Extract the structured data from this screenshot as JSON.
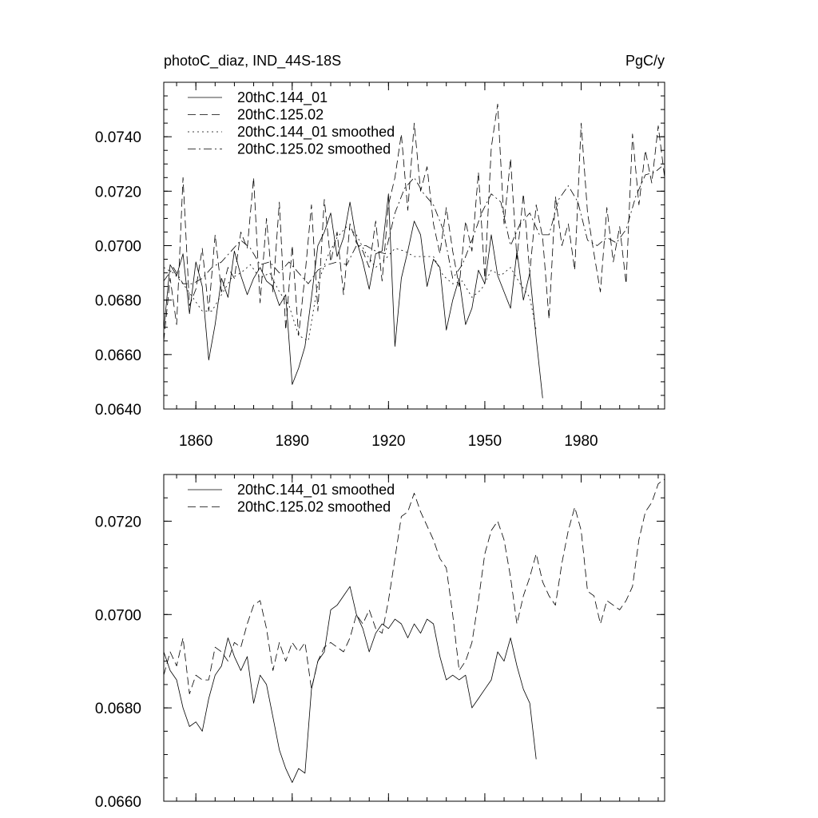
{
  "chart_data": [
    {
      "type": "line",
      "title": "photoC_diaz, IND_44S-18S",
      "title_right": "PgC/y",
      "xlabel": "",
      "ylabel": "",
      "xlim": [
        1850,
        2006
      ],
      "ylim": [
        0.064,
        0.076
      ],
      "xticks": [
        1860,
        1890,
        1920,
        1950,
        1980
      ],
      "xtick_labels": [
        "1860",
        "1890",
        "1920",
        "1950",
        "1980"
      ],
      "yticks": [
        0.064,
        0.066,
        0.068,
        0.07,
        0.072,
        0.074
      ],
      "ytick_labels": [
        "0.0640",
        "0.0660",
        "0.0680",
        "0.0700",
        "0.0720",
        "0.0740"
      ],
      "grid": false,
      "legend_position": "top-left",
      "series": [
        {
          "name": "20thC.144_01",
          "dash": "solid",
          "x": [
            1850,
            1852,
            1854,
            1856,
            1858,
            1860,
            1862,
            1864,
            1866,
            1868,
            1870,
            1872,
            1874,
            1876,
            1878,
            1880,
            1882,
            1884,
            1886,
            1888,
            1890,
            1892,
            1894,
            1896,
            1898,
            1900,
            1902,
            1904,
            1906,
            1908,
            1910,
            1912,
            1914,
            1916,
            1918,
            1920,
            1922,
            1924,
            1926,
            1928,
            1930,
            1932,
            1934,
            1936,
            1938,
            1940,
            1942,
            1944,
            1946,
            1948,
            1950,
            1952,
            1954,
            1956,
            1958,
            1960,
            1962,
            1964,
            1966,
            1968
          ],
          "y": [
            0.0669,
            0.0693,
            0.0689,
            0.0697,
            0.0675,
            0.0694,
            0.0685,
            0.0658,
            0.0671,
            0.0688,
            0.0681,
            0.0698,
            0.0689,
            0.0682,
            0.0688,
            0.0692,
            0.0687,
            0.0685,
            0.0678,
            0.0682,
            0.0649,
            0.0655,
            0.0663,
            0.0681,
            0.07,
            0.0705,
            0.0712,
            0.0696,
            0.0703,
            0.0716,
            0.0702,
            0.0694,
            0.0684,
            0.0697,
            0.0698,
            0.0719,
            0.0663,
            0.0688,
            0.0698,
            0.0709,
            0.0704,
            0.0685,
            0.0695,
            0.0692,
            0.0669,
            0.068,
            0.0688,
            0.0671,
            0.0677,
            0.0691,
            0.0686,
            0.0704,
            0.0689,
            0.0683,
            0.0677,
            0.0698,
            0.068,
            0.069,
            0.0666,
            0.0644
          ]
        },
        {
          "name": "20thC.125.02",
          "dash": "dashed",
          "x": [
            1850,
            1852,
            1854,
            1856,
            1858,
            1860,
            1862,
            1864,
            1866,
            1868,
            1870,
            1872,
            1874,
            1876,
            1878,
            1880,
            1882,
            1884,
            1886,
            1888,
            1890,
            1892,
            1894,
            1896,
            1898,
            1900,
            1902,
            1904,
            1906,
            1908,
            1910,
            1912,
            1914,
            1916,
            1918,
            1920,
            1922,
            1924,
            1926,
            1928,
            1930,
            1932,
            1934,
            1936,
            1938,
            1940,
            1942,
            1944,
            1946,
            1948,
            1950,
            1952,
            1954,
            1956,
            1958,
            1960,
            1962,
            1964,
            1966,
            1968,
            1970,
            1972,
            1974,
            1976,
            1978,
            1980,
            1982,
            1984,
            1986,
            1988,
            1990,
            1992,
            1994,
            1996,
            1998,
            2000,
            2002,
            2004,
            2006
          ],
          "y": [
            0.0665,
            0.0688,
            0.0671,
            0.0725,
            0.0678,
            0.0684,
            0.0699,
            0.0676,
            0.0704,
            0.0683,
            0.0692,
            0.0688,
            0.0705,
            0.0699,
            0.0725,
            0.0679,
            0.071,
            0.0683,
            0.0716,
            0.0669,
            0.07,
            0.0667,
            0.0689,
            0.0715,
            0.0676,
            0.0717,
            0.0694,
            0.0705,
            0.0682,
            0.0708,
            0.0701,
            0.0698,
            0.0692,
            0.0709,
            0.0687,
            0.0715,
            0.0725,
            0.0741,
            0.0713,
            0.0745,
            0.072,
            0.0729,
            0.0708,
            0.0697,
            0.0714,
            0.0698,
            0.0685,
            0.0709,
            0.0698,
            0.0727,
            0.0688,
            0.0736,
            0.0752,
            0.0708,
            0.0732,
            0.0695,
            0.0719,
            0.069,
            0.0715,
            0.0703,
            0.0673,
            0.0718,
            0.07,
            0.0708,
            0.0691,
            0.0745,
            0.0712,
            0.0697,
            0.0683,
            0.0714,
            0.0694,
            0.0707,
            0.0686,
            0.0741,
            0.0715,
            0.0735,
            0.0723,
            0.0744,
            0.0725
          ]
        },
        {
          "name": "20thC.144_01 smoothed",
          "dash": "dotted",
          "x": [
            1850,
            1853,
            1856,
            1859,
            1862,
            1865,
            1868,
            1871,
            1874,
            1877,
            1880,
            1883,
            1886,
            1889,
            1892,
            1895,
            1898,
            1901,
            1904,
            1907,
            1910,
            1913,
            1916,
            1919,
            1922,
            1925,
            1928,
            1931,
            1934,
            1937,
            1940,
            1943,
            1946,
            1949,
            1952,
            1955,
            1958,
            1961,
            1964,
            1966
          ],
          "y": [
            0.0692,
            0.069,
            0.0686,
            0.0681,
            0.0676,
            0.0676,
            0.0682,
            0.0688,
            0.069,
            0.0693,
            0.0688,
            0.069,
            0.0683,
            0.0678,
            0.0667,
            0.0665,
            0.0686,
            0.0696,
            0.0703,
            0.0707,
            0.0704,
            0.0697,
            0.0692,
            0.0695,
            0.0699,
            0.0698,
            0.0696,
            0.0696,
            0.0696,
            0.0689,
            0.0686,
            0.0687,
            0.0681,
            0.0684,
            0.0691,
            0.0689,
            0.0692,
            0.0686,
            0.0681,
            0.0669
          ]
        },
        {
          "name": "20thC.125.02 smoothed",
          "dash": "dashdot",
          "x": [
            1850,
            1853,
            1856,
            1859,
            1862,
            1865,
            1868,
            1871,
            1874,
            1877,
            1880,
            1883,
            1886,
            1889,
            1892,
            1895,
            1898,
            1901,
            1904,
            1907,
            1910,
            1913,
            1916,
            1919,
            1922,
            1925,
            1928,
            1931,
            1934,
            1937,
            1940,
            1943,
            1946,
            1949,
            1952,
            1955,
            1958,
            1961,
            1964,
            1967,
            1970,
            1973,
            1976,
            1979,
            1982,
            1985,
            1988,
            1991,
            1994,
            1997,
            2000,
            2003,
            2005
          ],
          "y": [
            0.0687,
            0.0692,
            0.0686,
            0.0686,
            0.0688,
            0.0692,
            0.0694,
            0.0698,
            0.0702,
            0.0699,
            0.0693,
            0.0694,
            0.069,
            0.0694,
            0.069,
            0.0686,
            0.0691,
            0.0693,
            0.0694,
            0.0693,
            0.07,
            0.07,
            0.0698,
            0.0697,
            0.0712,
            0.0721,
            0.0725,
            0.0719,
            0.0715,
            0.0706,
            0.0688,
            0.0693,
            0.0702,
            0.0712,
            0.0719,
            0.0716,
            0.07,
            0.0708,
            0.0712,
            0.0704,
            0.0704,
            0.0717,
            0.0722,
            0.0716,
            0.0702,
            0.07,
            0.0703,
            0.0701,
            0.0706,
            0.0718,
            0.0726,
            0.0727,
            0.0729
          ]
        }
      ]
    },
    {
      "type": "line",
      "title": "",
      "xlabel": "",
      "ylabel": "",
      "xlim": [
        1850,
        2006
      ],
      "ylim": [
        0.066,
        0.073
      ],
      "xticks": [
        1860,
        1890,
        1920,
        1950,
        1980
      ],
      "xtick_labels": [],
      "yticks": [
        0.066,
        0.068,
        0.07,
        0.072
      ],
      "ytick_labels": [
        "0.0660",
        "0.0680",
        "0.0700",
        "0.0720"
      ],
      "grid": false,
      "legend_position": "top-left",
      "series": [
        {
          "name": "20thC.144_01 smoothed",
          "dash": "solid",
          "x": [
            1850,
            1852,
            1854,
            1856,
            1858,
            1860,
            1862,
            1864,
            1866,
            1868,
            1870,
            1872,
            1874,
            1876,
            1878,
            1880,
            1882,
            1884,
            1886,
            1888,
            1890,
            1892,
            1894,
            1896,
            1898,
            1900,
            1902,
            1904,
            1906,
            1908,
            1910,
            1912,
            1914,
            1916,
            1918,
            1920,
            1922,
            1924,
            1926,
            1928,
            1930,
            1932,
            1934,
            1936,
            1938,
            1940,
            1942,
            1944,
            1946,
            1948,
            1950,
            1952,
            1954,
            1956,
            1958,
            1960,
            1962,
            1964,
            1966
          ],
          "y": [
            0.0692,
            0.0688,
            0.0686,
            0.068,
            0.0676,
            0.0677,
            0.0675,
            0.0682,
            0.0687,
            0.0689,
            0.0695,
            0.0691,
            0.0688,
            0.0691,
            0.0681,
            0.0687,
            0.0685,
            0.0678,
            0.0671,
            0.0667,
            0.0664,
            0.0667,
            0.0666,
            0.0684,
            0.069,
            0.0692,
            0.0701,
            0.0702,
            0.0704,
            0.0706,
            0.07,
            0.0697,
            0.0692,
            0.0696,
            0.0698,
            0.0697,
            0.0699,
            0.0698,
            0.0695,
            0.0698,
            0.0696,
            0.0699,
            0.0698,
            0.0691,
            0.0686,
            0.0687,
            0.0686,
            0.0687,
            0.068,
            0.0682,
            0.0684,
            0.0686,
            0.0692,
            0.069,
            0.0695,
            0.0689,
            0.0684,
            0.0681,
            0.0669
          ]
        },
        {
          "name": "20thC.125.02 smoothed",
          "dash": "dashed",
          "x": [
            1850,
            1852,
            1854,
            1856,
            1858,
            1860,
            1862,
            1864,
            1866,
            1868,
            1870,
            1872,
            1874,
            1876,
            1878,
            1880,
            1882,
            1884,
            1886,
            1888,
            1890,
            1892,
            1894,
            1896,
            1898,
            1900,
            1902,
            1904,
            1906,
            1908,
            1910,
            1912,
            1914,
            1916,
            1918,
            1920,
            1922,
            1924,
            1926,
            1928,
            1930,
            1932,
            1934,
            1936,
            1938,
            1940,
            1942,
            1944,
            1946,
            1948,
            1950,
            1952,
            1954,
            1956,
            1958,
            1960,
            1962,
            1964,
            1966,
            1968,
            1970,
            1972,
            1974,
            1976,
            1978,
            1980,
            1982,
            1984,
            1986,
            1988,
            1990,
            1992,
            1994,
            1996,
            1998,
            2000,
            2002,
            2004,
            2006
          ],
          "y": [
            0.0687,
            0.0692,
            0.0689,
            0.0695,
            0.0683,
            0.0687,
            0.0686,
            0.0686,
            0.0693,
            0.0692,
            0.069,
            0.0694,
            0.0693,
            0.0698,
            0.0702,
            0.0703,
            0.0697,
            0.0688,
            0.0694,
            0.069,
            0.0694,
            0.0692,
            0.0694,
            0.0684,
            0.069,
            0.0693,
            0.0694,
            0.0693,
            0.0692,
            0.0695,
            0.07,
            0.0698,
            0.0701,
            0.0697,
            0.0696,
            0.0703,
            0.0712,
            0.0721,
            0.0722,
            0.0726,
            0.0722,
            0.0719,
            0.0716,
            0.0712,
            0.071,
            0.07,
            0.0688,
            0.069,
            0.0694,
            0.0703,
            0.0713,
            0.0718,
            0.072,
            0.0716,
            0.0708,
            0.0698,
            0.0704,
            0.0708,
            0.0713,
            0.0707,
            0.0704,
            0.0702,
            0.0711,
            0.0718,
            0.0723,
            0.0718,
            0.0705,
            0.0704,
            0.0698,
            0.0703,
            0.0702,
            0.0701,
            0.0703,
            0.0706,
            0.0716,
            0.0722,
            0.0724,
            0.0728,
            0.0729
          ]
        }
      ]
    }
  ]
}
